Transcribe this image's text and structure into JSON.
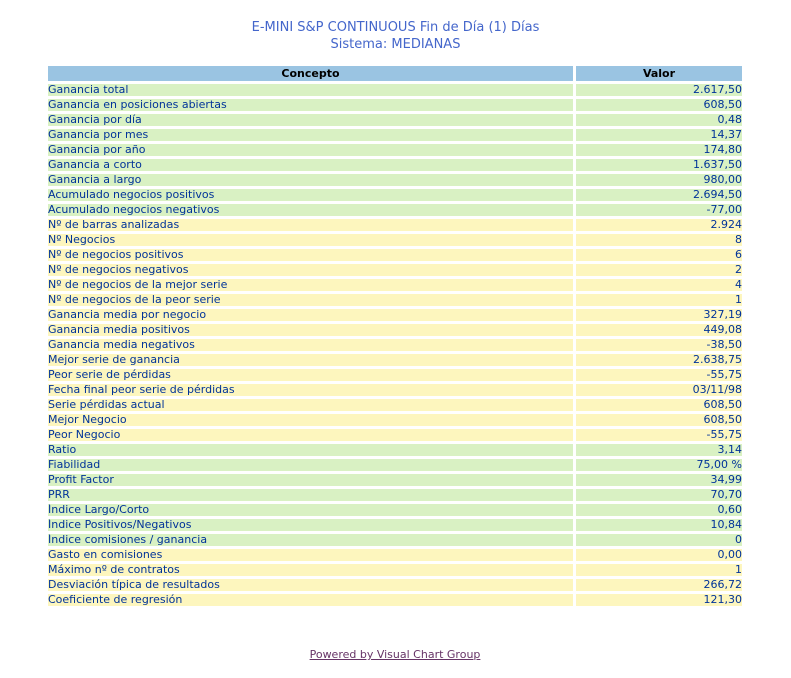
{
  "page": {
    "title_line1": "E-MINI S&P CONTINUOUS Fin de Día (1) Días",
    "title_line2": "Sistema: MEDIANAS"
  },
  "colors": {
    "title_blue": "#4466CB",
    "header_blue": "#9AC4E2",
    "row_green": "#D9F1C3",
    "row_yellow": "#FDF6BE",
    "cell_text_navy": "#003399",
    "link_purple": "#663366"
  },
  "table": {
    "columns": [
      "Concepto",
      "Valor"
    ],
    "rows": [
      {
        "concepto": "Ganancia total",
        "valor": "2.617,50",
        "band": "green"
      },
      {
        "concepto": "Ganancia en posiciones abiertas",
        "valor": "608,50",
        "band": "green"
      },
      {
        "concepto": "Ganancia por día",
        "valor": "0,48",
        "band": "green"
      },
      {
        "concepto": "Ganancia por mes",
        "valor": "14,37",
        "band": "green"
      },
      {
        "concepto": "Ganancia por año",
        "valor": "174,80",
        "band": "green"
      },
      {
        "concepto": "Ganancia a corto",
        "valor": "1.637,50",
        "band": "green"
      },
      {
        "concepto": "Ganancia a largo",
        "valor": "980,00",
        "band": "green"
      },
      {
        "concepto": "Acumulado negocios positivos",
        "valor": "2.694,50",
        "band": "green"
      },
      {
        "concepto": "Acumulado negocios negativos",
        "valor": "-77,00",
        "band": "green"
      },
      {
        "concepto": "Nº de barras analizadas",
        "valor": "2.924",
        "band": "yellow"
      },
      {
        "concepto": "Nº Negocios",
        "valor": "8",
        "band": "yellow"
      },
      {
        "concepto": "Nº de negocios positivos",
        "valor": "6",
        "band": "yellow"
      },
      {
        "concepto": "Nº de negocios negativos",
        "valor": "2",
        "band": "yellow"
      },
      {
        "concepto": "Nº de negocios de la mejor serie",
        "valor": "4",
        "band": "yellow"
      },
      {
        "concepto": "Nº de negocios de la peor serie",
        "valor": "1",
        "band": "yellow"
      },
      {
        "concepto": "Ganancia media por negocio",
        "valor": "327,19",
        "band": "yellow"
      },
      {
        "concepto": "Ganancia media positivos",
        "valor": "449,08",
        "band": "yellow"
      },
      {
        "concepto": "Ganancia media negativos",
        "valor": "-38,50",
        "band": "yellow"
      },
      {
        "concepto": "Mejor serie de ganancia",
        "valor": "2.638,75",
        "band": "yellow"
      },
      {
        "concepto": "Peor serie de pérdidas",
        "valor": "-55,75",
        "band": "yellow"
      },
      {
        "concepto": "Fecha final peor serie de pérdidas",
        "valor": "03/11/98",
        "band": "yellow"
      },
      {
        "concepto": "Serie pérdidas actual",
        "valor": "608,50",
        "band": "yellow"
      },
      {
        "concepto": "Mejor Negocio",
        "valor": "608,50",
        "band": "yellow"
      },
      {
        "concepto": "Peor Negocio",
        "valor": "-55,75",
        "band": "yellow"
      },
      {
        "concepto": "Ratio",
        "valor": "3,14",
        "band": "green"
      },
      {
        "concepto": "Fiabilidad",
        "valor": "75,00 %",
        "band": "green"
      },
      {
        "concepto": "Profit Factor",
        "valor": "34,99",
        "band": "green"
      },
      {
        "concepto": "PRR",
        "valor": "70,70",
        "band": "green"
      },
      {
        "concepto": "Índice Largo/Corto",
        "valor": "0,60",
        "band": "green"
      },
      {
        "concepto": "Índice Positivos/Negativos",
        "valor": "10,84",
        "band": "green"
      },
      {
        "concepto": "Índice comisiones / ganancia",
        "valor": "0",
        "band": "green"
      },
      {
        "concepto": "Gasto en comisiones",
        "valor": "0,00",
        "band": "yellow"
      },
      {
        "concepto": "Máximo nº de contratos",
        "valor": "1",
        "band": "yellow"
      },
      {
        "concepto": "Desviación típica de resultados",
        "valor": "266,72",
        "band": "yellow"
      },
      {
        "concepto": "Coeficiente de regresión",
        "valor": "121,30",
        "band": "yellow"
      }
    ]
  },
  "footer": {
    "link_label": "Powered by Visual Chart Group"
  }
}
